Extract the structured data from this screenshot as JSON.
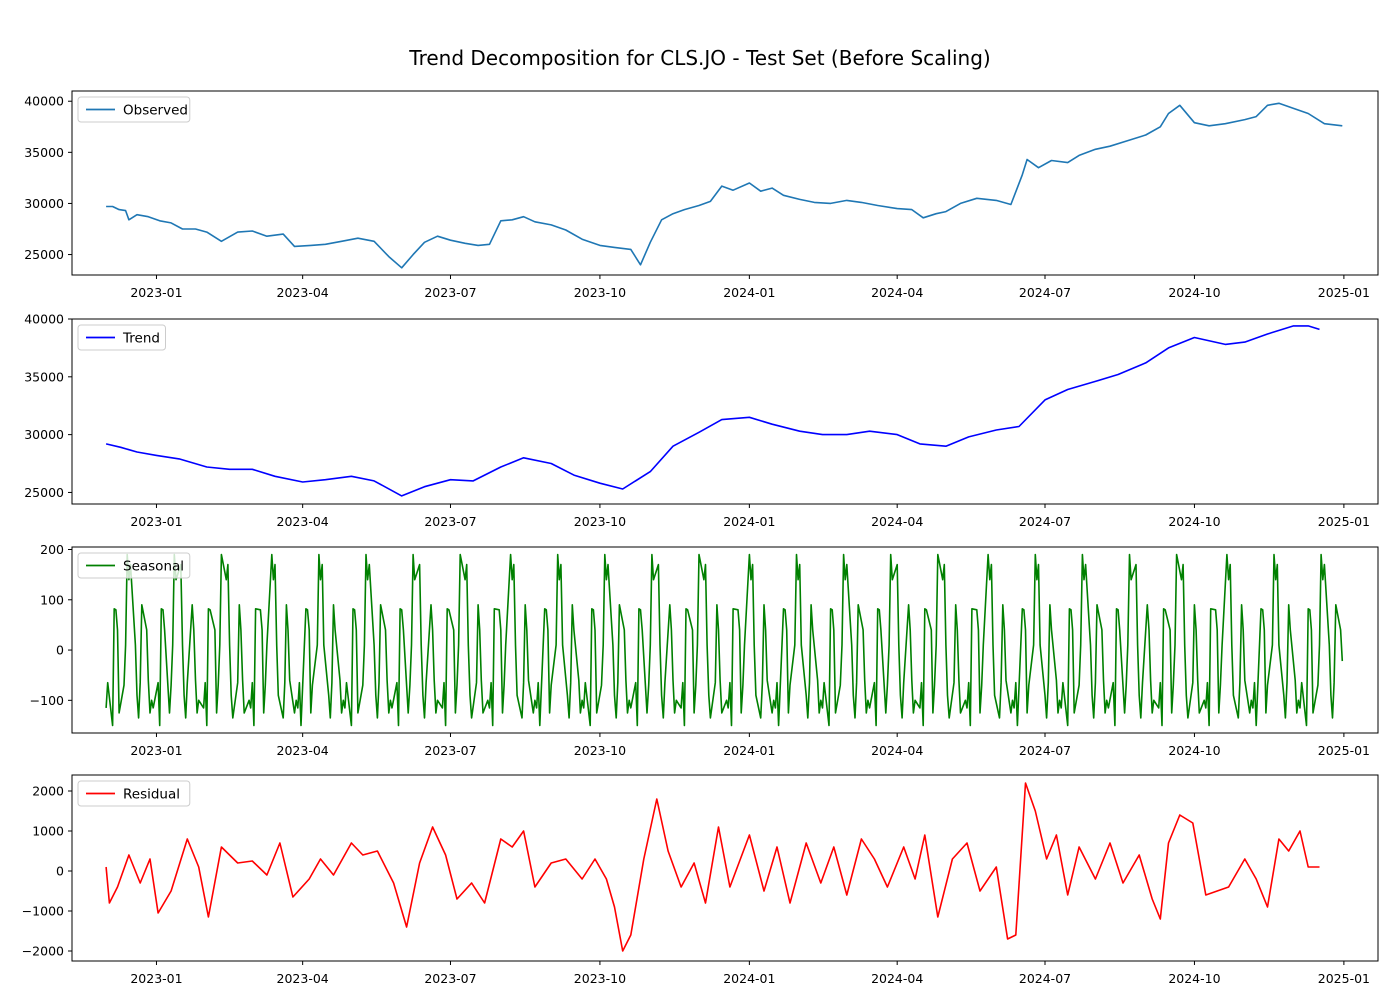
{
  "figure": {
    "title": "Trend Decomposition for CLS.JO - Test Set (Before Scaling)"
  },
  "chart_data": [
    {
      "type": "line",
      "title": "",
      "xlabel": "",
      "ylabel": "",
      "series": [
        {
          "name": "Observed",
          "color": "#1f77b4"
        }
      ],
      "x_start": "2022-12-01",
      "x_end": "2024-12-31",
      "xlim": [
        "2022-11-10",
        "2025-01-22"
      ],
      "ylim": [
        23000,
        41000
      ],
      "yticks": [
        25000,
        30000,
        35000,
        40000
      ],
      "xticks": [
        "2023-01",
        "2023-04",
        "2023-07",
        "2023-10",
        "2024-01",
        "2024-04",
        "2024-07",
        "2024-10",
        "2025-01"
      ],
      "legend": "top-left",
      "grid": false,
      "points": [
        [
          "2022-12-01",
          29700
        ],
        [
          "2022-12-05",
          29700
        ],
        [
          "2022-12-09",
          29400
        ],
        [
          "2022-12-13",
          29300
        ],
        [
          "2022-12-15",
          28400
        ],
        [
          "2022-12-20",
          28900
        ],
        [
          "2022-12-27",
          28700
        ],
        [
          "2023-01-03",
          28300
        ],
        [
          "2023-01-10",
          28100
        ],
        [
          "2023-01-17",
          27500
        ],
        [
          "2023-01-25",
          27500
        ],
        [
          "2023-02-01",
          27200
        ],
        [
          "2023-02-10",
          26300
        ],
        [
          "2023-02-20",
          27200
        ],
        [
          "2023-03-01",
          27300
        ],
        [
          "2023-03-10",
          26800
        ],
        [
          "2023-03-20",
          27000
        ],
        [
          "2023-03-27",
          25800
        ],
        [
          "2023-04-06",
          25900
        ],
        [
          "2023-04-15",
          26000
        ],
        [
          "2023-04-25",
          26300
        ],
        [
          "2023-05-05",
          26600
        ],
        [
          "2023-05-15",
          26300
        ],
        [
          "2023-05-24",
          24800
        ],
        [
          "2023-06-01",
          23700
        ],
        [
          "2023-06-08",
          25000
        ],
        [
          "2023-06-15",
          26200
        ],
        [
          "2023-06-23",
          26800
        ],
        [
          "2023-07-01",
          26400
        ],
        [
          "2023-07-10",
          26100
        ],
        [
          "2023-07-18",
          25900
        ],
        [
          "2023-07-25",
          26000
        ],
        [
          "2023-08-01",
          28300
        ],
        [
          "2023-08-08",
          28400
        ],
        [
          "2023-08-15",
          28700
        ],
        [
          "2023-08-22",
          28200
        ],
        [
          "2023-09-01",
          27900
        ],
        [
          "2023-09-10",
          27400
        ],
        [
          "2023-09-20",
          26500
        ],
        [
          "2023-10-01",
          25900
        ],
        [
          "2023-10-10",
          25700
        ],
        [
          "2023-10-20",
          25500
        ],
        [
          "2023-10-26",
          24000
        ],
        [
          "2023-11-01",
          26200
        ],
        [
          "2023-11-08",
          28400
        ],
        [
          "2023-11-15",
          29000
        ],
        [
          "2023-11-22",
          29400
        ],
        [
          "2023-12-01",
          29800
        ],
        [
          "2023-12-08",
          30200
        ],
        [
          "2023-12-15",
          31700
        ],
        [
          "2023-12-22",
          31300
        ],
        [
          "2024-01-01",
          32000
        ],
        [
          "2024-01-08",
          31200
        ],
        [
          "2024-01-15",
          31500
        ],
        [
          "2024-01-22",
          30800
        ],
        [
          "2024-02-01",
          30400
        ],
        [
          "2024-02-10",
          30100
        ],
        [
          "2024-02-20",
          30000
        ],
        [
          "2024-03-01",
          30300
        ],
        [
          "2024-03-10",
          30100
        ],
        [
          "2024-03-20",
          29800
        ],
        [
          "2024-04-01",
          29500
        ],
        [
          "2024-04-10",
          29400
        ],
        [
          "2024-04-17",
          28600
        ],
        [
          "2024-04-25",
          29000
        ],
        [
          "2024-05-01",
          29200
        ],
        [
          "2024-05-10",
          30000
        ],
        [
          "2024-05-20",
          30500
        ],
        [
          "2024-06-01",
          30300
        ],
        [
          "2024-06-10",
          29900
        ],
        [
          "2024-06-17",
          32800
        ],
        [
          "2024-06-20",
          34300
        ],
        [
          "2024-06-27",
          33500
        ],
        [
          "2024-07-05",
          34200
        ],
        [
          "2024-07-15",
          34000
        ],
        [
          "2024-07-22",
          34700
        ],
        [
          "2024-08-01",
          35300
        ],
        [
          "2024-08-10",
          35600
        ],
        [
          "2024-08-20",
          36100
        ],
        [
          "2024-09-01",
          36700
        ],
        [
          "2024-09-10",
          37500
        ],
        [
          "2024-09-15",
          38800
        ],
        [
          "2024-09-22",
          39600
        ],
        [
          "2024-10-01",
          37900
        ],
        [
          "2024-10-10",
          37600
        ],
        [
          "2024-10-20",
          37800
        ],
        [
          "2024-11-01",
          38200
        ],
        [
          "2024-11-08",
          38500
        ],
        [
          "2024-11-15",
          39600
        ],
        [
          "2024-11-22",
          39800
        ],
        [
          "2024-12-01",
          39300
        ],
        [
          "2024-12-10",
          38800
        ],
        [
          "2024-12-20",
          37800
        ],
        [
          "2024-12-31",
          37600
        ]
      ]
    },
    {
      "type": "line",
      "title": "",
      "xlabel": "",
      "ylabel": "",
      "series": [
        {
          "name": "Trend",
          "color": "#0000ff"
        }
      ],
      "x_start": "2022-12-01",
      "x_end": "2024-12-17",
      "xlim": [
        "2022-11-10",
        "2025-01-22"
      ],
      "ylim": [
        24000,
        40000
      ],
      "yticks": [
        25000,
        30000,
        35000,
        40000
      ],
      "xticks": [
        "2023-01",
        "2023-04",
        "2023-07",
        "2023-10",
        "2024-01",
        "2024-04",
        "2024-07",
        "2024-10",
        "2025-01"
      ],
      "legend": "top-left",
      "grid": false,
      "points": [
        [
          "2022-12-01",
          29200
        ],
        [
          "2022-12-10",
          28900
        ],
        [
          "2022-12-20",
          28500
        ],
        [
          "2023-01-01",
          28200
        ],
        [
          "2023-01-15",
          27900
        ],
        [
          "2023-02-01",
          27200
        ],
        [
          "2023-02-15",
          27000
        ],
        [
          "2023-03-01",
          27000
        ],
        [
          "2023-03-15",
          26400
        ],
        [
          "2023-04-01",
          25900
        ],
        [
          "2023-04-15",
          26100
        ],
        [
          "2023-05-01",
          26400
        ],
        [
          "2023-05-15",
          26000
        ],
        [
          "2023-06-01",
          24700
        ],
        [
          "2023-06-15",
          25500
        ],
        [
          "2023-07-01",
          26100
        ],
        [
          "2023-07-15",
          26000
        ],
        [
          "2023-08-01",
          27200
        ],
        [
          "2023-08-15",
          28000
        ],
        [
          "2023-09-01",
          27500
        ],
        [
          "2023-09-15",
          26500
        ],
        [
          "2023-10-01",
          25800
        ],
        [
          "2023-10-15",
          25300
        ],
        [
          "2023-11-01",
          26800
        ],
        [
          "2023-11-15",
          29000
        ],
        [
          "2023-12-01",
          30200
        ],
        [
          "2023-12-15",
          31300
        ],
        [
          "2024-01-01",
          31500
        ],
        [
          "2024-01-15",
          30900
        ],
        [
          "2024-02-01",
          30300
        ],
        [
          "2024-02-15",
          30000
        ],
        [
          "2024-03-01",
          30000
        ],
        [
          "2024-03-15",
          30300
        ],
        [
          "2024-04-01",
          30000
        ],
        [
          "2024-04-15",
          29200
        ],
        [
          "2024-05-01",
          29000
        ],
        [
          "2024-05-15",
          29800
        ],
        [
          "2024-06-01",
          30400
        ],
        [
          "2024-06-15",
          30700
        ],
        [
          "2024-07-01",
          33000
        ],
        [
          "2024-07-15",
          33900
        ],
        [
          "2024-08-01",
          34600
        ],
        [
          "2024-08-15",
          35200
        ],
        [
          "2024-09-01",
          36200
        ],
        [
          "2024-09-15",
          37500
        ],
        [
          "2024-10-01",
          38400
        ],
        [
          "2024-10-20",
          37800
        ],
        [
          "2024-11-01",
          38000
        ],
        [
          "2024-11-15",
          38700
        ],
        [
          "2024-12-01",
          39400
        ],
        [
          "2024-12-10",
          39400
        ],
        [
          "2024-12-17",
          39100
        ]
      ]
    },
    {
      "type": "line",
      "title": "",
      "xlabel": "",
      "ylabel": "",
      "series": [
        {
          "name": "Seasonal",
          "color": "#008000"
        }
      ],
      "x_start": "2022-12-01",
      "x_end": "2024-12-31",
      "xlim": [
        "2022-11-10",
        "2025-01-22"
      ],
      "ylim": [
        -165,
        205
      ],
      "yticks": [
        -100,
        0,
        100,
        200
      ],
      "xticks": [
        "2023-01",
        "2023-04",
        "2023-07",
        "2023-10",
        "2024-01",
        "2024-04",
        "2024-07",
        "2024-10",
        "2025-01"
      ],
      "legend": "top-left",
      "grid": false,
      "period_trading_days": 21,
      "pattern": [
        -115,
        -65,
        -150,
        82,
        80,
        40,
        -125,
        -70,
        10,
        190,
        140,
        170,
        10,
        -90,
        -135,
        -65,
        90,
        40,
        -60,
        -125,
        -100
      ],
      "final_value": -22
    },
    {
      "type": "line",
      "title": "",
      "xlabel": "",
      "ylabel": "",
      "series": [
        {
          "name": "Residual",
          "color": "#ff0000"
        }
      ],
      "x_start": "2022-12-01",
      "x_end": "2024-12-17",
      "xlim": [
        "2022-11-10",
        "2025-01-22"
      ],
      "ylim": [
        -2250,
        2400
      ],
      "yticks": [
        -2000,
        -1000,
        0,
        1000,
        2000
      ],
      "xticks": [
        "2023-01",
        "2023-04",
        "2023-07",
        "2023-10",
        "2024-01",
        "2024-04",
        "2024-07",
        "2024-10",
        "2025-01"
      ],
      "legend": "top-left",
      "grid": false,
      "points": [
        [
          "2022-12-01",
          100
        ],
        [
          "2022-12-03",
          -800
        ],
        [
          "2022-12-08",
          -400
        ],
        [
          "2022-12-15",
          400
        ],
        [
          "2022-12-22",
          -300
        ],
        [
          "2022-12-28",
          300
        ],
        [
          "2023-01-02",
          -1050
        ],
        [
          "2023-01-10",
          -500
        ],
        [
          "2023-01-20",
          800
        ],
        [
          "2023-01-27",
          100
        ],
        [
          "2023-02-02",
          -1150
        ],
        [
          "2023-02-10",
          600
        ],
        [
          "2023-02-20",
          200
        ],
        [
          "2023-03-01",
          250
        ],
        [
          "2023-03-10",
          -100
        ],
        [
          "2023-03-18",
          700
        ],
        [
          "2023-03-26",
          -650
        ],
        [
          "2023-04-05",
          -200
        ],
        [
          "2023-04-12",
          300
        ],
        [
          "2023-04-20",
          -100
        ],
        [
          "2023-05-01",
          700
        ],
        [
          "2023-05-08",
          400
        ],
        [
          "2023-05-17",
          500
        ],
        [
          "2023-05-27",
          -300
        ],
        [
          "2023-06-04",
          -1400
        ],
        [
          "2023-06-12",
          200
        ],
        [
          "2023-06-20",
          1100
        ],
        [
          "2023-06-28",
          400
        ],
        [
          "2023-07-05",
          -700
        ],
        [
          "2023-07-14",
          -300
        ],
        [
          "2023-07-22",
          -800
        ],
        [
          "2023-08-01",
          800
        ],
        [
          "2023-08-08",
          600
        ],
        [
          "2023-08-15",
          1000
        ],
        [
          "2023-08-22",
          -400
        ],
        [
          "2023-09-01",
          200
        ],
        [
          "2023-09-10",
          300
        ],
        [
          "2023-09-20",
          -200
        ],
        [
          "2023-09-28",
          300
        ],
        [
          "2023-10-05",
          -200
        ],
        [
          "2023-10-10",
          -900
        ],
        [
          "2023-10-15",
          -2000
        ],
        [
          "2023-10-20",
          -1600
        ],
        [
          "2023-10-28",
          300
        ],
        [
          "2023-11-05",
          1800
        ],
        [
          "2023-11-12",
          500
        ],
        [
          "2023-11-20",
          -400
        ],
        [
          "2023-11-28",
          200
        ],
        [
          "2023-12-05",
          -800
        ],
        [
          "2023-12-13",
          1100
        ],
        [
          "2023-12-20",
          -400
        ],
        [
          "2024-01-01",
          900
        ],
        [
          "2024-01-10",
          -500
        ],
        [
          "2024-01-18",
          600
        ],
        [
          "2024-01-26",
          -800
        ],
        [
          "2024-02-05",
          700
        ],
        [
          "2024-02-14",
          -300
        ],
        [
          "2024-02-22",
          600
        ],
        [
          "2024-03-01",
          -600
        ],
        [
          "2024-03-10",
          800
        ],
        [
          "2024-03-18",
          300
        ],
        [
          "2024-03-26",
          -400
        ],
        [
          "2024-04-05",
          600
        ],
        [
          "2024-04-12",
          -200
        ],
        [
          "2024-04-18",
          900
        ],
        [
          "2024-04-26",
          -1150
        ],
        [
          "2024-05-05",
          300
        ],
        [
          "2024-05-14",
          700
        ],
        [
          "2024-05-22",
          -500
        ],
        [
          "2024-06-01",
          100
        ],
        [
          "2024-06-08",
          -1700
        ],
        [
          "2024-06-13",
          -1600
        ],
        [
          "2024-06-19",
          2200
        ],
        [
          "2024-06-25",
          1500
        ],
        [
          "2024-07-02",
          300
        ],
        [
          "2024-07-08",
          900
        ],
        [
          "2024-07-15",
          -600
        ],
        [
          "2024-07-22",
          600
        ],
        [
          "2024-08-01",
          -200
        ],
        [
          "2024-08-10",
          700
        ],
        [
          "2024-08-18",
          -300
        ],
        [
          "2024-08-28",
          400
        ],
        [
          "2024-09-05",
          -700
        ],
        [
          "2024-09-10",
          -1200
        ],
        [
          "2024-09-15",
          700
        ],
        [
          "2024-09-22",
          1400
        ],
        [
          "2024-09-30",
          1200
        ],
        [
          "2024-10-08",
          -600
        ],
        [
          "2024-10-15",
          -500
        ],
        [
          "2024-10-22",
          -400
        ],
        [
          "2024-11-01",
          300
        ],
        [
          "2024-11-08",
          -200
        ],
        [
          "2024-11-15",
          -900
        ],
        [
          "2024-11-22",
          800
        ],
        [
          "2024-11-28",
          500
        ],
        [
          "2024-12-05",
          1000
        ],
        [
          "2024-12-10",
          100
        ],
        [
          "2024-12-17",
          100
        ]
      ]
    }
  ]
}
